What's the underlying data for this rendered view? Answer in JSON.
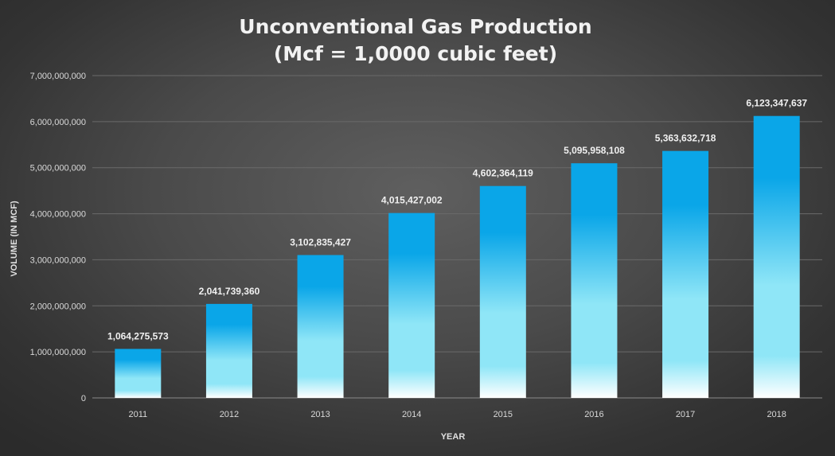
{
  "chart_data": {
    "type": "bar",
    "title_lines": [
      "Unconventional Gas Production",
      "(Mcf = 1,0000 cubic feet)"
    ],
    "xlabel": "YEAR",
    "ylabel": "VOLUME (IN MCF)",
    "categories": [
      "2011",
      "2012",
      "2013",
      "2014",
      "2015",
      "2016",
      "2017",
      "2018"
    ],
    "values": [
      1064275573,
      2041739360,
      3102835427,
      4015427002,
      4602364119,
      5095958108,
      5363632718,
      6123347637
    ],
    "data_labels": [
      "1,064,275,573",
      "2,041,739,360",
      "3,102,835,427",
      "4,015,427,002",
      "4,602,364,119",
      "5,095,958,108",
      "5,363,632,718",
      "6,123,347,637"
    ],
    "ylim": [
      0,
      7000000000
    ],
    "yticks": [
      0,
      1000000000,
      2000000000,
      3000000000,
      4000000000,
      5000000000,
      6000000000,
      7000000000
    ],
    "ytick_labels": [
      "0",
      "1,000,000,000",
      "2,000,000,000",
      "3,000,000,000",
      "4,000,000,000",
      "5,000,000,000",
      "6,000,000,000",
      "7,000,000,000"
    ],
    "grid": true,
    "legend": "none"
  },
  "colors": {
    "bar_top": "#0aa6e8",
    "bar_mid": "#8fe6f7",
    "bar_bottom": "#ffffff"
  }
}
